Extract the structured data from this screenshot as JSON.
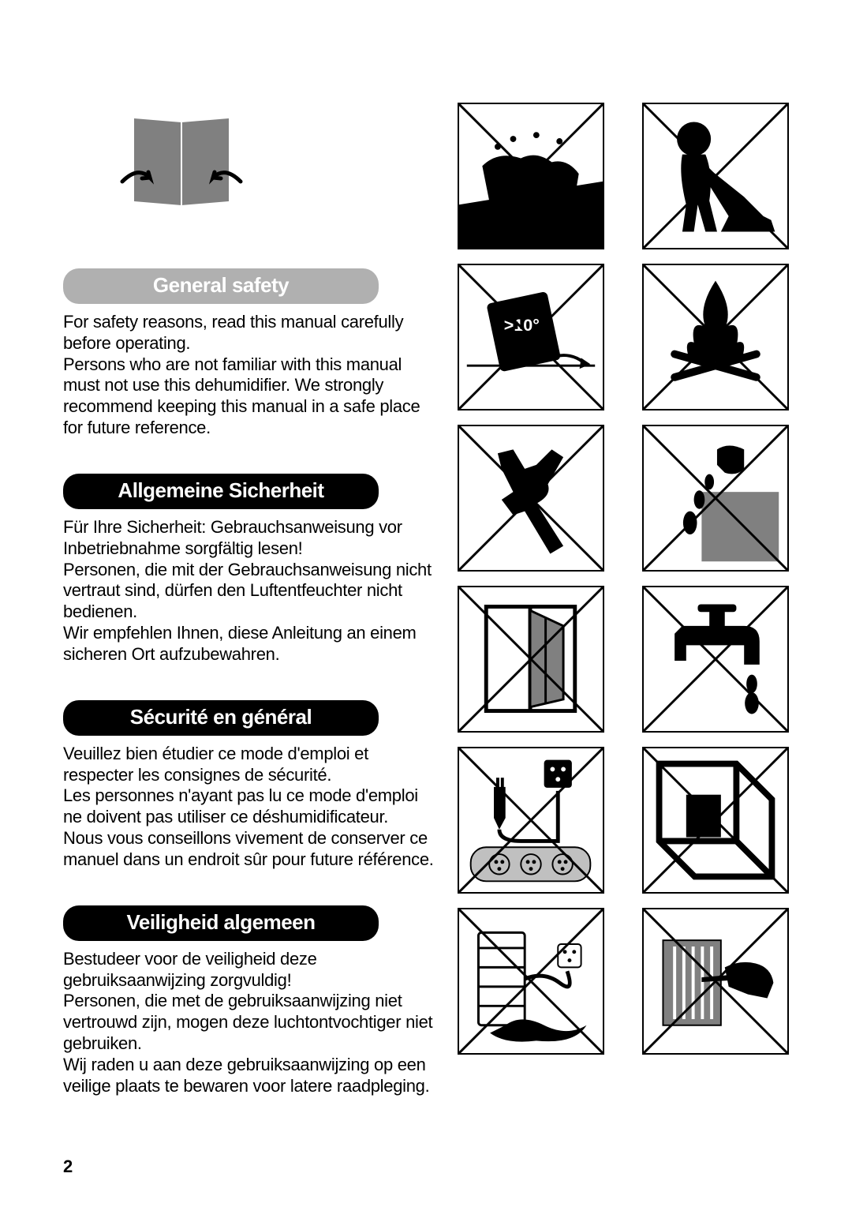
{
  "page_number": "2",
  "angle_text": ">10°",
  "sections": [
    {
      "header_style": "light",
      "title": "General safety",
      "body": "For safety reasons, read this manual carefully before operating.\nPersons who are not familiar with this manual must not use this dehumidifier. We strongly recommend keeping this manual in a safe place for future reference."
    },
    {
      "header_style": "dark",
      "title": "Allgemeine Sicherheit",
      "body": "Für Ihre Sicherheit: Gebrauchsanweisung vor Inbetriebnahme sorgfältig lesen!\nPersonen, die mit der Gebrauchsanweisung nicht vertraut sind, dürfen den Luftentfeuchter nicht bedienen.\nWir empfehlen Ihnen, diese Anleitung an einem sicheren Ort aufzubewahren."
    },
    {
      "header_style": "dark",
      "title": "Sécurité en général",
      "body": "Veuillez bien étudier ce mode d'emploi et respecter les consignes de sécurité.\nLes personnes n'ayant pas lu ce mode d'emploi ne doivent pas utiliser ce déshumidificateur.\nNous vous conseillons vivement de conserver ce manuel dans un endroit sûr pour future référence."
    },
    {
      "header_style": "dark",
      "title": "Veiligheid algemeen",
      "body": "Bestudeer voor de veiligheid deze gebruiksaanwijzing zorgvuldig!\nPersonen, die met de gebruiksaanwijzing niet vertrouwd zijn, mogen deze luchtontvochtiger niet gebruiken.\nWij raden u aan deze gebruiksaanwijzing op een veilige plaats te bewaren voor latere raadpleging."
    }
  ],
  "icons": {
    "manual": "read-manual-icon",
    "safety_boxes": [
      "no-wet-hands-icon",
      "no-children-icon",
      "no-tilt-icon",
      "no-fire-icon",
      "no-tools-icon",
      "no-liquid-icon",
      "no-open-window-icon",
      "no-water-tap-icon",
      "no-extension-cord-icon",
      "no-corner-icon",
      "no-spill-icon",
      "no-insert-icon"
    ]
  },
  "colors": {
    "bg": "#ffffff",
    "text": "#000000",
    "header_dark": "#000000",
    "header_light_bg": "#b0b0b0",
    "gray_fill": "#808080",
    "light_gray": "#c0c0c0"
  }
}
